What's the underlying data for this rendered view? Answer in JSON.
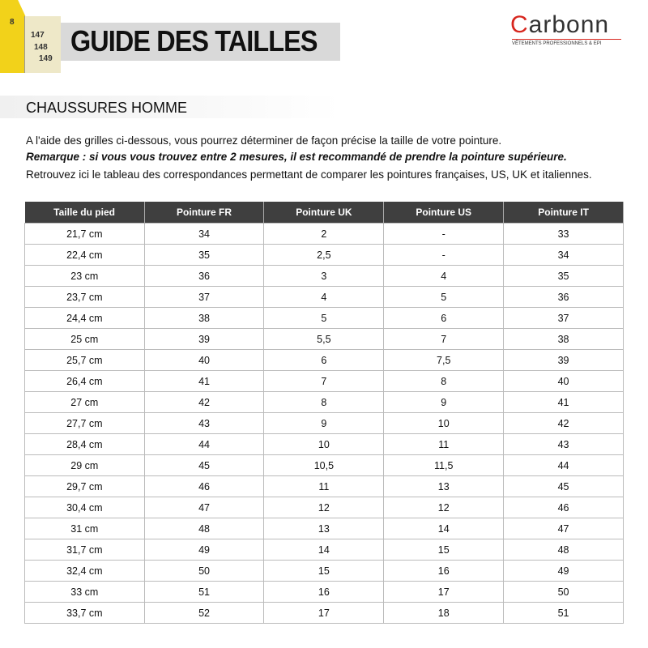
{
  "header": {
    "tape_labels": [
      "8",
      "147",
      "148",
      "149"
    ],
    "title": "GUIDE DES TAILLES",
    "logo": {
      "name": "Carbonn",
      "tagline": "VÊTEMENTS PROFESSIONNELS & EPI"
    }
  },
  "section": {
    "title": "CHAUSSURES HOMME",
    "paragraphs": [
      "A l'aide des grilles ci-dessous, vous pourrez déterminer de façon précise la taille de votre pointure.",
      "Remarque : si vous vous trouvez entre 2 mesures, il est recommandé de prendre la pointure supérieure.",
      "Retrouvez ici le tableau des correspondances permettant de comparer les pointures françaises, US, UK et italiennes."
    ]
  },
  "table": {
    "columns": [
      "Taille du pied",
      "Pointure FR",
      "Pointure UK",
      "Pointure US",
      "Pointure IT"
    ],
    "rows": [
      [
        "21,7 cm",
        "34",
        "2",
        "-",
        "33"
      ],
      [
        "22,4 cm",
        "35",
        "2,5",
        "-",
        "34"
      ],
      [
        "23 cm",
        "36",
        "3",
        "4",
        "35"
      ],
      [
        "23,7 cm",
        "37",
        "4",
        "5",
        "36"
      ],
      [
        "24,4 cm",
        "38",
        "5",
        "6",
        "37"
      ],
      [
        "25 cm",
        "39",
        "5,5",
        "7",
        "38"
      ],
      [
        "25,7 cm",
        "40",
        "6",
        "7,5",
        "39"
      ],
      [
        "26,4 cm",
        "41",
        "7",
        "8",
        "40"
      ],
      [
        "27 cm",
        "42",
        "8",
        "9",
        "41"
      ],
      [
        "27,7 cm",
        "43",
        "9",
        "10",
        "42"
      ],
      [
        "28,4 cm",
        "44",
        "10",
        "11",
        "43"
      ],
      [
        "29 cm",
        "45",
        "10,5",
        "11,5",
        "44"
      ],
      [
        "29,7 cm",
        "46",
        "11",
        "13",
        "45"
      ],
      [
        "30,4 cm",
        "47",
        "12",
        "12",
        "46"
      ],
      [
        "31 cm",
        "48",
        "13",
        "14",
        "47"
      ],
      [
        "31,7 cm",
        "49",
        "14",
        "15",
        "48"
      ],
      [
        "32,4 cm",
        "50",
        "15",
        "16",
        "49"
      ],
      [
        "33 cm",
        "51",
        "16",
        "17",
        "50"
      ],
      [
        "33,7 cm",
        "52",
        "17",
        "18",
        "51"
      ]
    ]
  }
}
